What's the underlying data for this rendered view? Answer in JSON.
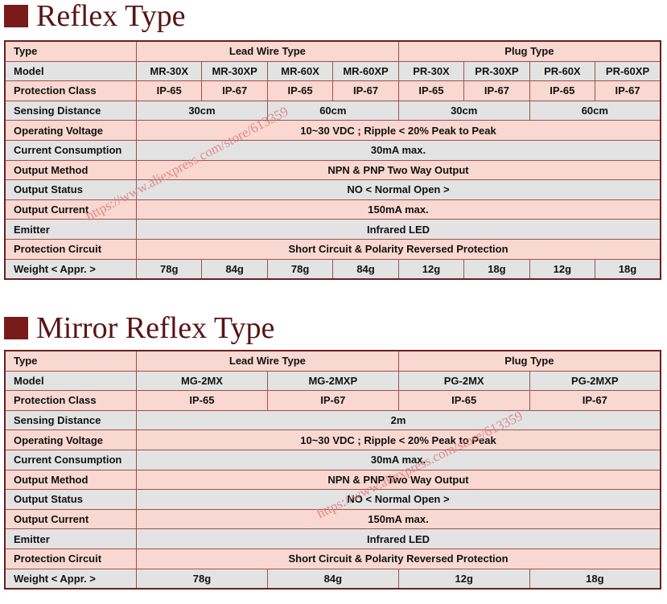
{
  "reflex": {
    "title": "Reflex Type",
    "rows": [
      [
        "Type",
        "Lead Wire Type",
        "Plug Type"
      ],
      [
        "Model",
        "MR-30X",
        "MR-30XP",
        "MR-60X",
        "MR-60XP",
        "PR-30X",
        "PR-30XP",
        "PR-60X",
        "PR-60XP"
      ],
      [
        "Protection Class",
        "IP-65",
        "IP-67",
        "IP-65",
        "IP-67",
        "IP-65",
        "IP-67",
        "IP-65",
        "IP-67"
      ],
      [
        "Sensing Distance",
        "30cm",
        "60cm",
        "30cm",
        "60cm"
      ],
      [
        "Operating Voltage",
        "10~30 VDC ; Ripple < 20% Peak to Peak"
      ],
      [
        "Current Consumption",
        "30mA max."
      ],
      [
        "Output Method",
        "NPN & PNP Two Way Output"
      ],
      [
        "Output Status",
        "NO < Normal Open >"
      ],
      [
        "Output Current",
        "150mA max."
      ],
      [
        "Emitter",
        "Infrared LED"
      ],
      [
        "Protection Circuit",
        "Short Circuit & Polarity Reversed Protection"
      ],
      [
        "Weight < Appr. >",
        "78g",
        "84g",
        "78g",
        "84g",
        "12g",
        "18g",
        "12g",
        "18g"
      ]
    ]
  },
  "mirror": {
    "title": "Mirror Reflex Type",
    "rows": [
      [
        "Type",
        "Lead Wire Type",
        "Plug Type"
      ],
      [
        "Model",
        "MG-2MX",
        "MG-2MXP",
        "PG-2MX",
        "PG-2MXP"
      ],
      [
        "Protection Class",
        "IP-65",
        "IP-67",
        "IP-65",
        "IP-67"
      ],
      [
        "Sensing Distance",
        "2m"
      ],
      [
        "Operating Voltage",
        "10~30 VDC ; Ripple < 20% Peak to Peak"
      ],
      [
        "Current Consumption",
        "30mA max."
      ],
      [
        "Output Method",
        "NPN & PNP Two Way Output"
      ],
      [
        "Output Status",
        "NO < Normal Open >"
      ],
      [
        "Output Current",
        "150mA max."
      ],
      [
        "Emitter",
        "Infrared LED"
      ],
      [
        "Protection Circuit",
        "Short Circuit & Polarity Reversed Protection"
      ],
      [
        "Weight < Appr. >",
        "78g",
        "84g",
        "12g",
        "18g"
      ]
    ]
  },
  "watermarks": [
    "https://www.aliexpress.com/store/613359",
    "https://www.aliexpress.com/store/613359"
  ]
}
